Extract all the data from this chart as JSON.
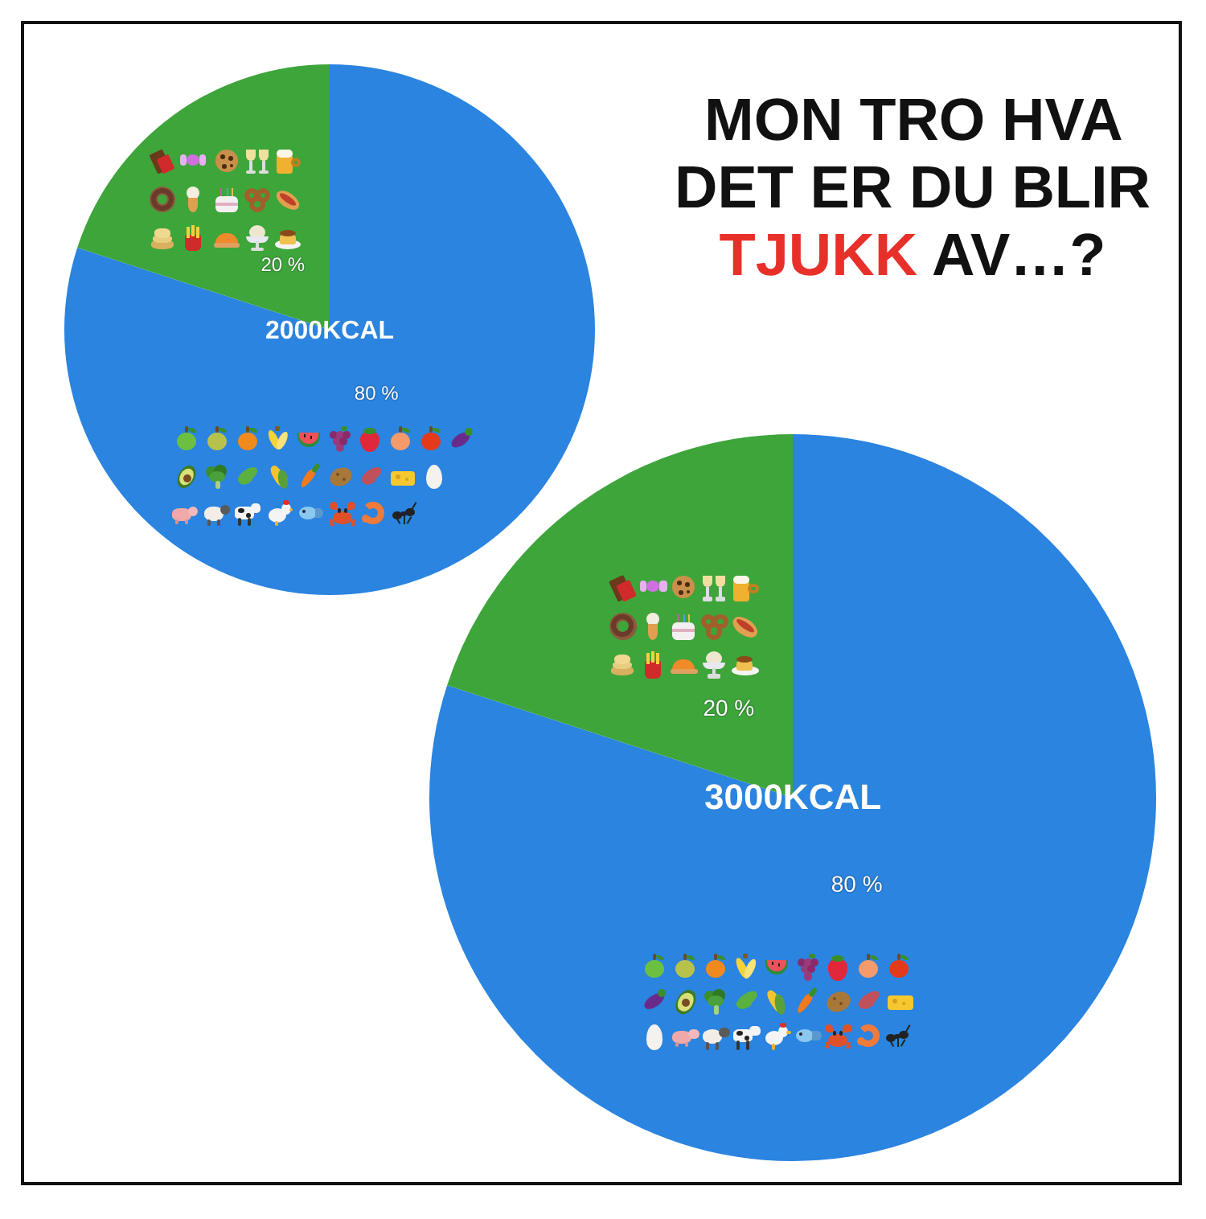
{
  "chart_data": [
    {
      "type": "pie",
      "title": "2000KCAL",
      "categories": [
        null,
        null
      ],
      "values": [
        80,
        20
      ],
      "colors": [
        "#2a84e0",
        "#3ea53b"
      ],
      "value_labels": [
        "80 %",
        "20 %"
      ]
    },
    {
      "type": "other",
      "title": "MON TRO HVA DET ER DU BLIR TJUKK AV…?"
    },
    {
      "type": "pie",
      "title": "3000KCAL",
      "categories": [
        null,
        null
      ],
      "values": [
        80,
        20
      ],
      "colors": [
        "#2a84e0",
        "#3ea53b"
      ],
      "value_labels": [
        "80 %",
        "20 %"
      ]
    }
  ]
}
